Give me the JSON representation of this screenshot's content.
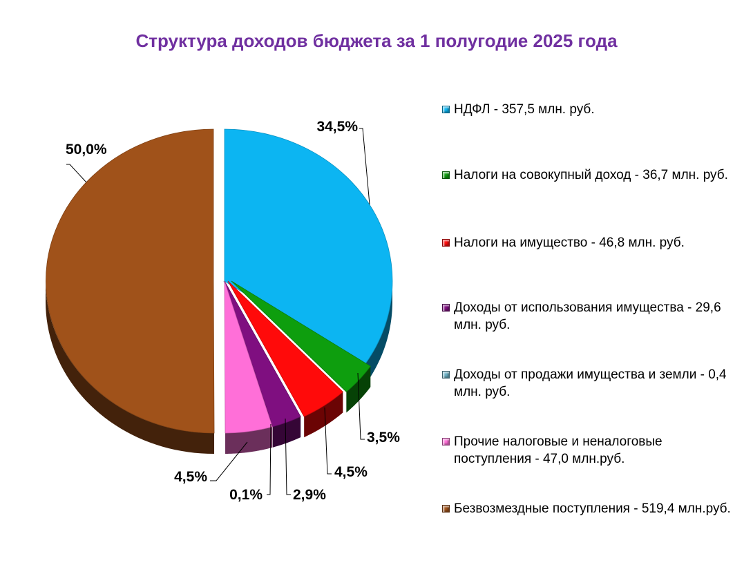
{
  "chart_data": {
    "type": "pie",
    "title": "Структура доходов бюджета за 1 полугодие 2025 года",
    "legend_position": "right",
    "slices": [
      {
        "label": "НДФЛ - 357,5 млн. руб.",
        "value": 357.5,
        "percent_label": "34,5%",
        "color": "#0cb5f2"
      },
      {
        "label": "Налоги на совокупный доход - 36,7 млн. руб.",
        "value": 36.7,
        "percent_label": "3,5%",
        "color": "#0e9e0e"
      },
      {
        "label": "Налоги на имущество - 46,8 млн. руб.",
        "value": 46.8,
        "percent_label": "4,5%",
        "color": "#ff0a0a"
      },
      {
        "label": "Доходы от использования имущества - 29,6 млн. руб.",
        "value": 29.6,
        "percent_label": "2,9%",
        "color": "#7f0f80"
      },
      {
        "label": "Доходы от продажи имущества и земли - 0,4 млн. руб.",
        "value": 0.4,
        "percent_label": "0,1%",
        "color": "#6ab0c4"
      },
      {
        "label": "Прочие налоговые и неналоговые поступления - 47,0 млн.руб.",
        "value": 47.0,
        "percent_label": "4,5%",
        "color": "#ff6fd8"
      },
      {
        "label": "Безвозмездные поступления - 519,4 млн.руб.",
        "value": 519.4,
        "percent_label": "50,0%",
        "color": "#a0521a"
      }
    ]
  }
}
